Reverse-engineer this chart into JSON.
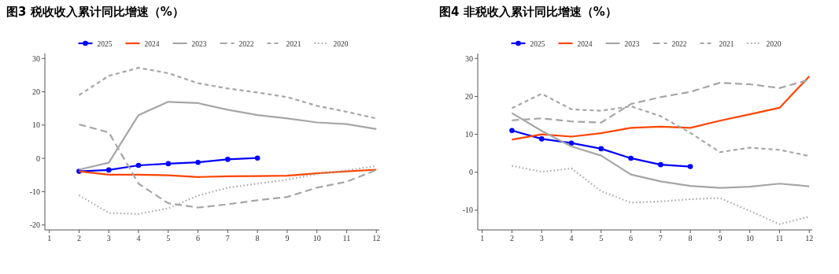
{
  "chart_data": [
    {
      "type": "line",
      "title": "图3  税收收入累计同比增速（%）",
      "legend": "top",
      "grid": false,
      "x": [
        2,
        3,
        4,
        5,
        6,
        7,
        8,
        9,
        10,
        11,
        12
      ],
      "xlim": [
        0.85,
        12.1
      ],
      "ylim": [
        -21.5,
        31.5
      ],
      "xticks": [
        1,
        2,
        3,
        4,
        5,
        6,
        7,
        8,
        9,
        10,
        11,
        12
      ],
      "yticks": [
        -20,
        -10,
        0,
        10,
        20,
        30
      ],
      "series": [
        {
          "name": "2025",
          "color": "#0000ff",
          "line_style": "solid",
          "marker": "circle",
          "x": [
            2,
            3,
            4,
            5,
            6,
            7,
            8
          ],
          "values": [
            -3.9,
            -3.5,
            -2.1,
            -1.6,
            -1.2,
            -0.3,
            0.1
          ]
        },
        {
          "name": "2024",
          "color": "#ff4500",
          "line_style": "solid",
          "marker": "none",
          "values": [
            -3.9,
            -4.9,
            -4.9,
            -5.1,
            -5.6,
            -5.4,
            -5.3,
            -5.2,
            -4.5,
            -3.9,
            -3.4
          ]
        },
        {
          "name": "2023",
          "color": "#a6a6a6",
          "line_style": "solid",
          "marker": "none",
          "values": [
            -3.4,
            -1.3,
            13.0,
            17.0,
            16.6,
            14.6,
            13.0,
            12.0,
            10.8,
            10.3,
            8.8
          ]
        },
        {
          "name": "2022",
          "color": "#a6a6a6",
          "line_style": "longdash",
          "marker": "none",
          "values": [
            10.2,
            7.8,
            -7.6,
            -13.5,
            -14.8,
            -13.8,
            -12.6,
            -11.6,
            -8.8,
            -7.0,
            -3.5
          ]
        },
        {
          "name": "2021",
          "color": "#a6a6a6",
          "line_style": "dashed",
          "marker": "none",
          "values": [
            19.0,
            24.8,
            27.2,
            25.6,
            22.6,
            21.0,
            19.8,
            18.4,
            15.8,
            14.0,
            12.0
          ]
        },
        {
          "name": "2020",
          "color": "#a6a6a6",
          "line_style": "dotted",
          "marker": "none",
          "values": [
            -11.1,
            -16.4,
            -16.7,
            -15.0,
            -11.2,
            -8.8,
            -7.6,
            -6.4,
            -4.7,
            -3.6,
            -2.3
          ]
        }
      ]
    },
    {
      "type": "line",
      "title": "图4  非税收入累计同比增速（%）",
      "legend": "top",
      "grid": false,
      "x": [
        2,
        3,
        4,
        5,
        6,
        7,
        8,
        9,
        10,
        11,
        12
      ],
      "xlim": [
        0.85,
        12.1
      ],
      "ylim": [
        -15.2,
        31.3
      ],
      "xticks": [
        1,
        2,
        3,
        4,
        5,
        6,
        7,
        8,
        9,
        10,
        11,
        12
      ],
      "yticks": [
        -10,
        0,
        10,
        20,
        30
      ],
      "series": [
        {
          "name": "2025",
          "color": "#0000ff",
          "line_style": "solid",
          "marker": "circle",
          "x": [
            2,
            3,
            4,
            5,
            6,
            7,
            8
          ],
          "values": [
            11.0,
            8.8,
            7.7,
            6.2,
            3.7,
            2.0,
            1.5
          ]
        },
        {
          "name": "2024",
          "color": "#ff4500",
          "line_style": "solid",
          "marker": "none",
          "values": [
            8.6,
            10.0,
            9.4,
            10.3,
            11.7,
            12.0,
            11.7,
            13.6,
            15.3,
            17.0,
            25.3
          ]
        },
        {
          "name": "2023",
          "color": "#a6a6a6",
          "line_style": "solid",
          "marker": "none",
          "values": [
            15.6,
            10.9,
            6.8,
            4.4,
            -0.6,
            -2.4,
            -3.6,
            -4.1,
            -3.8,
            -3.0,
            -3.7
          ]
        },
        {
          "name": "2022",
          "color": "#a6a6a6",
          "line_style": "longdash",
          "marker": "none",
          "values": [
            13.7,
            14.2,
            13.4,
            13.1,
            18.0,
            19.8,
            21.2,
            23.6,
            23.2,
            22.2,
            24.4
          ]
        },
        {
          "name": "2021",
          "color": "#a6a6a6",
          "line_style": "dashed",
          "marker": "none",
          "values": [
            16.9,
            20.7,
            16.6,
            16.2,
            17.4,
            14.8,
            10.4,
            5.3,
            6.5,
            5.9,
            4.3
          ]
        },
        {
          "name": "2020",
          "color": "#a6a6a6",
          "line_style": "dotted",
          "marker": "none",
          "values": [
            1.7,
            0.1,
            1.0,
            -5.0,
            -8.0,
            -7.7,
            -7.1,
            -6.8,
            -10.2,
            -13.7,
            -11.7
          ]
        }
      ]
    }
  ]
}
